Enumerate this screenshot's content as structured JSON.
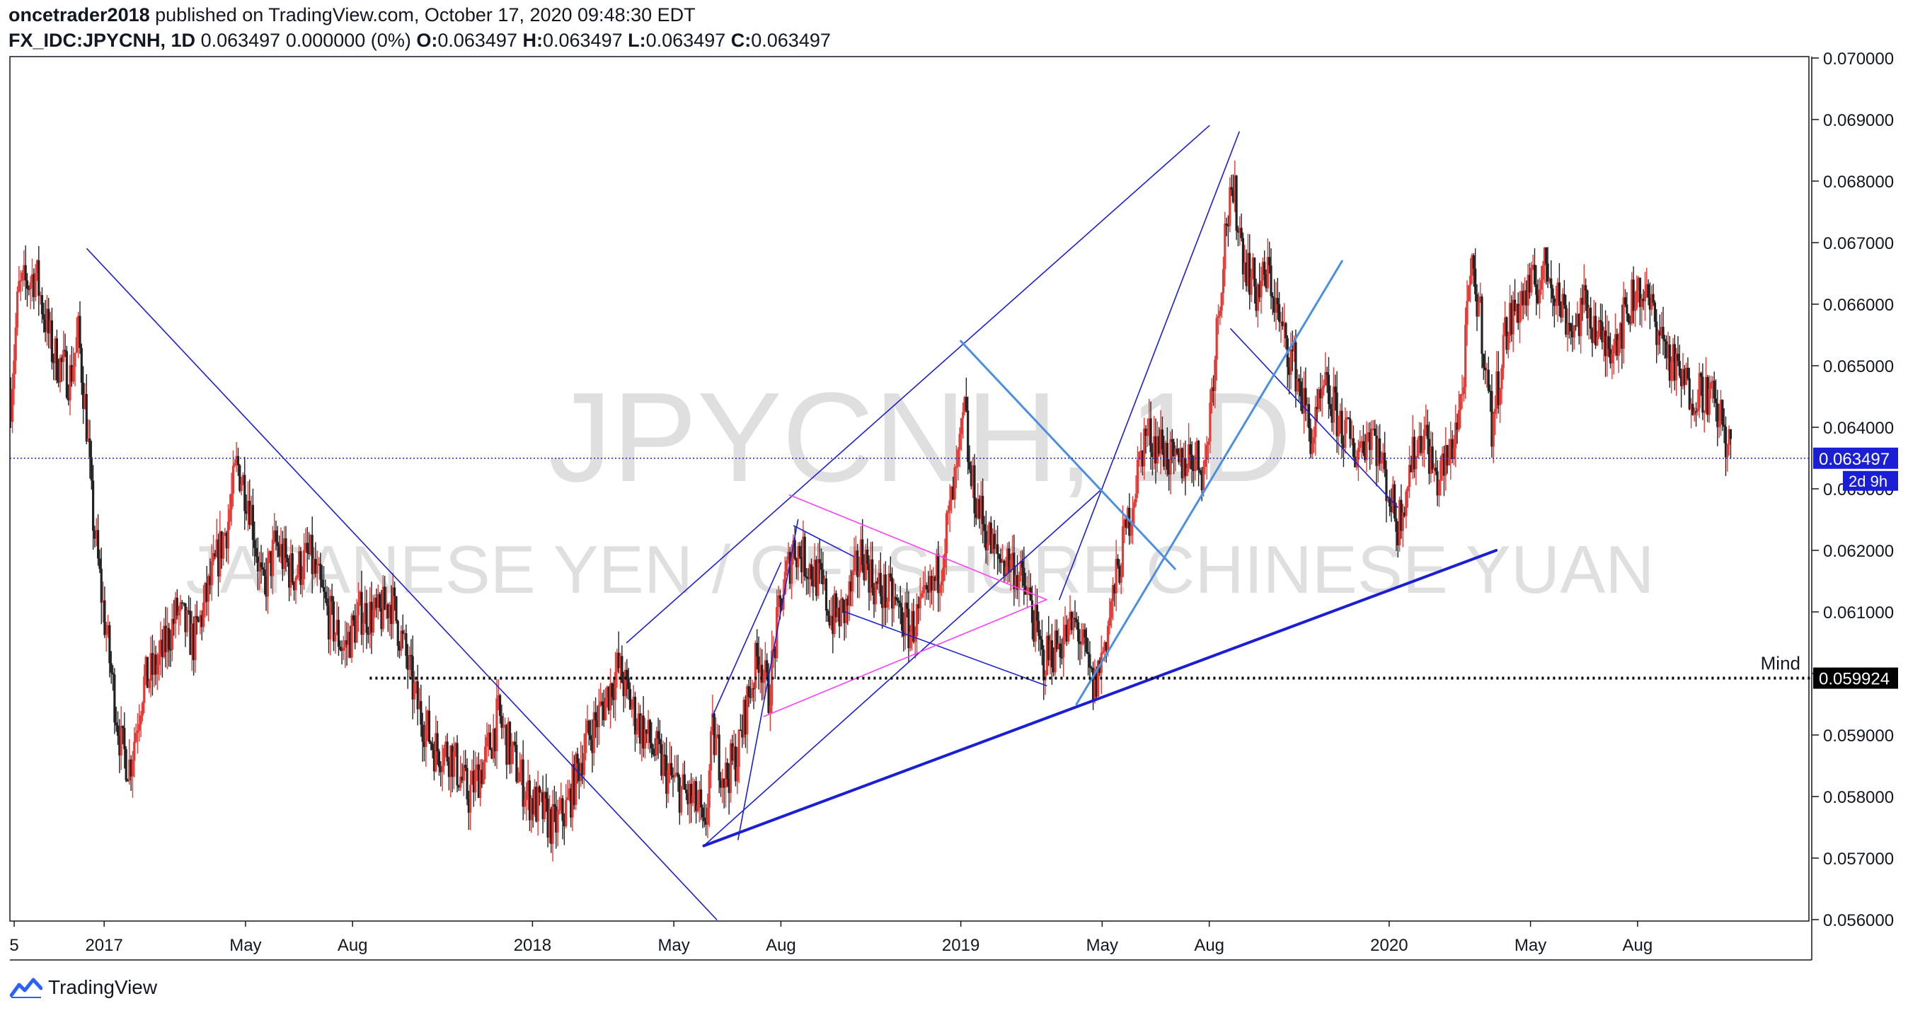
{
  "header": {
    "author": "oncetrader2018",
    "published": "published on TradingView.com, October 17, 2020 09:48:30 EDT",
    "symbol": "FX_IDC:JPYCNH, 1D",
    "quote": "0.063497 0.000000 (0%)",
    "o_label": "O:",
    "o_value": "0.063497",
    "h_label": "H:",
    "h_value": "0.063497",
    "l_label": "L:",
    "l_value": "0.063497",
    "c_label": "C:",
    "c_value": "0.063497"
  },
  "footer": {
    "brand": "TradingView"
  },
  "colors": {
    "up": "#e53935",
    "down": "#222222",
    "trend": "#1a1fd6",
    "trend_light": "#4a90e2",
    "pattern": "#ff40ff",
    "price_tag": "#1a1fd6"
  },
  "chart_data": {
    "type": "candlestick",
    "watermark_symbol": "JPYCNH, 1D",
    "watermark_name": "JAPANESE YEN / OFFSHORE CHINESE YUAN",
    "y_axis": {
      "ylim": [
        0.056,
        0.07
      ],
      "ticks": [
        "0.070000",
        "0.069000",
        "0.068000",
        "0.067000",
        "0.066000",
        "0.065000",
        "0.064000",
        "0.063000",
        "0.062000",
        "0.061000",
        "0.060000",
        "0.059000",
        "0.058000",
        "0.057000",
        "0.056000"
      ],
      "tick_values": [
        0.07,
        0.069,
        0.068,
        0.067,
        0.066,
        0.065,
        0.064,
        0.063,
        0.062,
        0.061,
        0.06,
        0.059,
        0.058,
        0.057,
        0.056
      ]
    },
    "x_axis": {
      "xlim": [
        2016.78,
        2020.98
      ],
      "ticks": [
        {
          "label": "5",
          "t": 2016.79
        },
        {
          "label": "2017",
          "t": 2017.0
        },
        {
          "label": "May",
          "t": 2017.33
        },
        {
          "label": "Aug",
          "t": 2017.58
        },
        {
          "label": "2018",
          "t": 2018.0
        },
        {
          "label": "May",
          "t": 2018.33
        },
        {
          "label": "Aug",
          "t": 2018.58
        },
        {
          "label": "2019",
          "t": 2019.0
        },
        {
          "label": "May",
          "t": 2019.33
        },
        {
          "label": "Aug",
          "t": 2019.58
        },
        {
          "label": "2020",
          "t": 2020.0
        },
        {
          "label": "May",
          "t": 2020.33
        },
        {
          "label": "Aug",
          "t": 2020.58
        }
      ]
    },
    "price_path": [
      [
        2016.78,
        0.0643
      ],
      [
        2016.8,
        0.0662
      ],
      [
        2016.84,
        0.0665
      ],
      [
        2016.88,
        0.0652
      ],
      [
        2016.92,
        0.0648
      ],
      [
        2016.94,
        0.0655
      ],
      [
        2016.96,
        0.064
      ],
      [
        2016.97,
        0.0628
      ],
      [
        2016.99,
        0.0615
      ],
      [
        2017.02,
        0.0598
      ],
      [
        2017.04,
        0.0588
      ],
      [
        2017.06,
        0.0585
      ],
      [
        2017.09,
        0.0598
      ],
      [
        2017.13,
        0.0602
      ],
      [
        2017.17,
        0.061
      ],
      [
        2017.21,
        0.0605
      ],
      [
        2017.25,
        0.0615
      ],
      [
        2017.29,
        0.0625
      ],
      [
        2017.31,
        0.0634
      ],
      [
        2017.34,
        0.0628
      ],
      [
        2017.37,
        0.0613
      ],
      [
        2017.4,
        0.0621
      ],
      [
        2017.44,
        0.0616
      ],
      [
        2017.48,
        0.0619
      ],
      [
        2017.52,
        0.061
      ],
      [
        2017.56,
        0.0604
      ],
      [
        2017.6,
        0.061
      ],
      [
        2017.64,
        0.0609
      ],
      [
        2017.67,
        0.0612
      ],
      [
        2017.7,
        0.0604
      ],
      [
        2017.73,
        0.0595
      ],
      [
        2017.77,
        0.0588
      ],
      [
        2017.81,
        0.0587
      ],
      [
        2017.85,
        0.058
      ],
      [
        2017.89,
        0.0586
      ],
      [
        2017.92,
        0.0593
      ],
      [
        2017.95,
        0.0587
      ],
      [
        2017.99,
        0.058
      ],
      [
        2018.03,
        0.0577
      ],
      [
        2018.05,
        0.0575
      ],
      [
        2018.08,
        0.0578
      ],
      [
        2018.12,
        0.0588
      ],
      [
        2018.16,
        0.0594
      ],
      [
        2018.2,
        0.0601
      ],
      [
        2018.24,
        0.0593
      ],
      [
        2018.28,
        0.0588
      ],
      [
        2018.32,
        0.0583
      ],
      [
        2018.36,
        0.058
      ],
      [
        2018.39,
        0.0578
      ],
      [
        2018.4,
        0.0572
      ],
      [
        2018.42,
        0.059
      ],
      [
        2018.45,
        0.0583
      ],
      [
        2018.48,
        0.0587
      ],
      [
        2018.5,
        0.0595
      ],
      [
        2018.53,
        0.0604
      ],
      [
        2018.55,
        0.0596
      ],
      [
        2018.58,
        0.0612
      ],
      [
        2018.61,
        0.0621
      ],
      [
        2018.64,
        0.0618
      ],
      [
        2018.67,
        0.0615
      ],
      [
        2018.7,
        0.0609
      ],
      [
        2018.73,
        0.061
      ],
      [
        2018.77,
        0.062
      ],
      [
        2018.8,
        0.0614
      ],
      [
        2018.84,
        0.0612
      ],
      [
        2018.88,
        0.0607
      ],
      [
        2018.92,
        0.0611
      ],
      [
        2018.95,
        0.0617
      ],
      [
        2018.99,
        0.0632
      ],
      [
        2019.01,
        0.0643
      ],
      [
        2019.02,
        0.0632
      ],
      [
        2019.05,
        0.0625
      ],
      [
        2019.08,
        0.0619
      ],
      [
        2019.12,
        0.0618
      ],
      [
        2019.16,
        0.0612
      ],
      [
        2019.19,
        0.0602
      ],
      [
        2019.23,
        0.0605
      ],
      [
        2019.27,
        0.0608
      ],
      [
        2019.3,
        0.06
      ],
      [
        2019.31,
        0.0597
      ],
      [
        2019.33,
        0.0603
      ],
      [
        2019.36,
        0.0614
      ],
      [
        2019.4,
        0.0628
      ],
      [
        2019.43,
        0.0639
      ],
      [
        2019.47,
        0.0637
      ],
      [
        2019.5,
        0.0633
      ],
      [
        2019.54,
        0.0636
      ],
      [
        2019.57,
        0.0633
      ],
      [
        2019.59,
        0.065
      ],
      [
        2019.6,
        0.0658
      ],
      [
        2019.62,
        0.0674
      ],
      [
        2019.64,
        0.0677
      ],
      [
        2019.66,
        0.0668
      ],
      [
        2019.69,
        0.0662
      ],
      [
        2019.72,
        0.0665
      ],
      [
        2019.75,
        0.0655
      ],
      [
        2019.78,
        0.065
      ],
      [
        2019.82,
        0.0638
      ],
      [
        2019.85,
        0.0646
      ],
      [
        2019.89,
        0.064
      ],
      [
        2019.92,
        0.0636
      ],
      [
        2019.96,
        0.064
      ],
      [
        2019.99,
        0.0632
      ],
      [
        2020.02,
        0.0624
      ],
      [
        2020.05,
        0.0634
      ],
      [
        2020.08,
        0.064
      ],
      [
        2020.11,
        0.0631
      ],
      [
        2020.14,
        0.0635
      ],
      [
        2020.17,
        0.0645
      ],
      [
        2020.19,
        0.0665
      ],
      [
        2020.21,
        0.066
      ],
      [
        2020.24,
        0.064
      ],
      [
        2020.27,
        0.0655
      ],
      [
        2020.3,
        0.066
      ],
      [
        2020.34,
        0.0663
      ],
      [
        2020.37,
        0.0666
      ],
      [
        2020.4,
        0.066
      ],
      [
        2020.43,
        0.0656
      ],
      [
        2020.46,
        0.066
      ],
      [
        2020.5,
        0.0653
      ],
      [
        2020.54,
        0.0656
      ],
      [
        2020.58,
        0.0663
      ],
      [
        2020.62,
        0.0658
      ],
      [
        2020.66,
        0.065
      ],
      [
        2020.7,
        0.0646
      ],
      [
        2020.74,
        0.0646
      ],
      [
        2020.77,
        0.0642
      ],
      [
        2020.8,
        0.0635
      ]
    ],
    "drawings": [
      {
        "kind": "line",
        "style": "trend",
        "width": 1.6,
        "points": [
          [
            2016.96,
            0.0669
          ],
          [
            2018.43,
            0.056
          ]
        ]
      },
      {
        "kind": "line",
        "style": "trend",
        "width": 1.6,
        "points": [
          [
            2018.22,
            0.0605
          ],
          [
            2019.58,
            0.0689
          ]
        ]
      },
      {
        "kind": "line",
        "style": "trend",
        "width": 1.6,
        "points": [
          [
            2018.42,
            0.0593
          ],
          [
            2018.58,
            0.0618
          ]
        ]
      },
      {
        "kind": "line",
        "style": "trend",
        "width": 1.6,
        "points": [
          [
            2018.48,
            0.0573
          ],
          [
            2018.62,
            0.0625
          ]
        ]
      },
      {
        "kind": "line",
        "style": "trend",
        "width": 1.6,
        "points": [
          [
            2018.4,
            0.0572
          ],
          [
            2019.33,
            0.063
          ]
        ]
      },
      {
        "kind": "line",
        "style": "trend",
        "width": 1.6,
        "points": [
          [
            2018.61,
            0.0624
          ],
          [
            2018.75,
            0.0619
          ]
        ]
      },
      {
        "kind": "line",
        "style": "trend",
        "width": 1.6,
        "points": [
          [
            2018.73,
            0.061
          ],
          [
            2019.2,
            0.0598
          ]
        ]
      },
      {
        "kind": "line",
        "style": "trend",
        "width": 1.6,
        "points": [
          [
            2019.23,
            0.0612
          ],
          [
            2019.65,
            0.0688
          ]
        ]
      },
      {
        "kind": "line",
        "style": "trend",
        "width": 1.6,
        "points": [
          [
            2019.63,
            0.0656
          ],
          [
            2020.02,
            0.0627
          ]
        ]
      },
      {
        "kind": "line",
        "style": "trend",
        "width": 4,
        "points": [
          [
            2018.4,
            0.0572
          ],
          [
            2020.25,
            0.062
          ]
        ]
      },
      {
        "kind": "line",
        "style": "trend_light",
        "width": 3,
        "points": [
          [
            2019.0,
            0.0654
          ],
          [
            2019.5,
            0.0617
          ]
        ]
      },
      {
        "kind": "line",
        "style": "trend_light",
        "width": 3,
        "points": [
          [
            2019.27,
            0.0595
          ],
          [
            2019.89,
            0.0667
          ]
        ]
      },
      {
        "kind": "line",
        "style": "pattern",
        "width": 1.6,
        "points": [
          [
            2018.6,
            0.0629
          ],
          [
            2019.2,
            0.0612
          ]
        ]
      },
      {
        "kind": "line",
        "style": "pattern",
        "width": 1.6,
        "points": [
          [
            2018.54,
            0.0593
          ],
          [
            2019.2,
            0.0612
          ]
        ]
      }
    ],
    "current_price": {
      "value": 0.063497,
      "label": "0.063497",
      "countdown": "2d 9h"
    },
    "horizontal_level": {
      "value": 0.059924,
      "label": "0.059924",
      "name": "Mind",
      "start_t": 2017.62
    }
  }
}
